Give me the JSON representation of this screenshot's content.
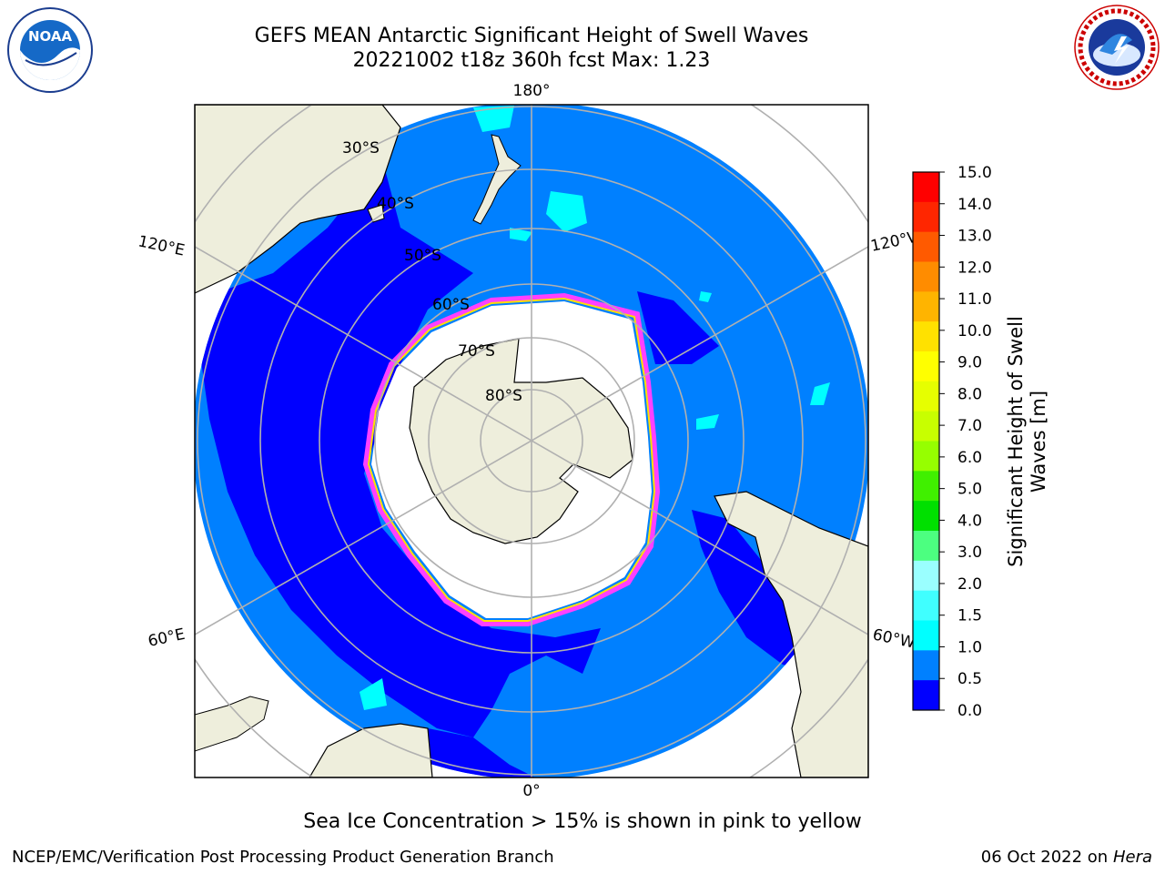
{
  "title_line1": "GEFS MEAN Antarctic Significant Height of Swell Waves",
  "title_line2": "20221002 t18z 360h fcst   Max: 1.23",
  "logos": {
    "left": {
      "text": "NOAA",
      "ring_text": "NATIONAL OCEANIC AND ATMOSPHERIC ADMINISTRATION · U.S. DEPARTMENT OF COMMERCE"
    },
    "right": {
      "ring_text": "NATIONAL WEATHER SERVICE"
    }
  },
  "map": {
    "projection": "south-polar-stereographic",
    "longitude_labels": {
      "top": "180°",
      "bottom": "0°",
      "upper_left": "120°E",
      "upper_right": "120°W",
      "lower_left": "60°E",
      "lower_right": "60°W"
    },
    "latitude_labels": [
      "30°S",
      "40°S",
      "50°S",
      "60°S",
      "70°S",
      "80°S"
    ],
    "colors": {
      "land": "#eeeedc",
      "ocean_0_0_5": "#0000ff",
      "ocean_0_5_1_0": "#0080ff",
      "ice": "#ffffff",
      "grid": "#b0b0b0",
      "ice_edge": [
        "#ff40ff",
        "#ffff00"
      ]
    }
  },
  "colorbar": {
    "title": "Significant Height of Swell Waves [m]",
    "ticks": [
      "15.0",
      "14.0",
      "13.0",
      "12.0",
      "11.0",
      "10.0",
      "9.0",
      "8.0",
      "7.0",
      "6.0",
      "5.0",
      "4.0",
      "3.0",
      "2.0",
      "1.5",
      "1.0",
      "0.5",
      "0.0"
    ],
    "colors": [
      "#ff0000",
      "#ff2600",
      "#ff5a00",
      "#ff8c00",
      "#ffb400",
      "#ffe100",
      "#ffff00",
      "#e6ff00",
      "#c8ff00",
      "#96ff00",
      "#40f000",
      "#00e000",
      "#4cff80",
      "#9affff",
      "#40ffff",
      "#00ffff",
      "#0080ff",
      "#0000ff"
    ]
  },
  "caption": "Sea Ice Concentration > 15% is shown in pink to yellow",
  "footer": {
    "left": "NCEP/EMC/Verification Post Processing Product Generation Branch",
    "right_prefix": "06 Oct 2022 on ",
    "right_host": "Hera"
  }
}
